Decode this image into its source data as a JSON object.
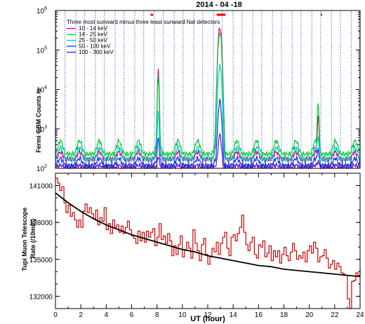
{
  "chart_data": [
    {
      "type": "line",
      "title": "2014 - 04 -18",
      "ylabel": "Fermi GBM Counts /s",
      "yscale": "log",
      "ylim": [
        100,
        1000000
      ],
      "xlim": [
        0,
        24
      ],
      "y_ticks": [
        {
          "value": 100,
          "base": "10",
          "exp": "2"
        },
        {
          "value": 1000,
          "base": "10",
          "exp": "3"
        },
        {
          "value": 10000,
          "base": "10",
          "exp": "4"
        },
        {
          "value": 100000,
          "base": "10",
          "exp": "5"
        },
        {
          "value": 1000000,
          "base": "10",
          "exp": "6"
        }
      ],
      "legend_title": "Three most sunward minus three least sunward NaI detectors",
      "legend_position": "top-left",
      "series": [
        {
          "name": "10 - 14 keV",
          "color": "#dd0077",
          "peaks": [
            {
              "x": 8.1,
              "y": 30000
            },
            {
              "x": 12.95,
              "y": 380000
            },
            {
              "x": 20.7,
              "y": 2000
            }
          ]
        },
        {
          "name": "14 - 25 keV",
          "color": "#00cc33",
          "peaks": [
            {
              "x": 8.1,
              "y": 20000
            },
            {
              "x": 12.95,
              "y": 280000
            },
            {
              "x": 20.7,
              "y": 4500
            }
          ]
        },
        {
          "name": "25 - 50 keV",
          "color": "#00cccc",
          "peaks": [
            {
              "x": 8.1,
              "y": 2500
            },
            {
              "x": 12.95,
              "y": 40000
            },
            {
              "x": 20.7,
              "y": 600
            }
          ]
        },
        {
          "name": "50 - 100 keV",
          "color": "#0033ff",
          "peaks": [
            {
              "x": 8.1,
              "y": 600
            },
            {
              "x": 12.95,
              "y": 5000
            },
            {
              "x": 20.7,
              "y": 300
            }
          ]
        },
        {
          "name": "100 - 300 keV",
          "color": "#6a0dad",
          "peaks": [
            {
              "x": 8.1,
              "y": 200
            },
            {
              "x": 12.95,
              "y": 700
            },
            {
              "x": 20.7,
              "y": 150
            }
          ]
        }
      ],
      "orbit_bumps_x": [
        0.4,
        1.9,
        3.45,
        5.0,
        6.55,
        8.1,
        9.65,
        11.2,
        12.75,
        14.3,
        15.85,
        17.4,
        18.95,
        20.5,
        22.05,
        23.6
      ],
      "saa_gaps_x": [
        0.05,
        0.75,
        1.6,
        2.3,
        3.15,
        3.85,
        4.7,
        5.4,
        6.25,
        6.95,
        7.8,
        8.5,
        9.35,
        10.05,
        10.9,
        11.6,
        12.45,
        13.15,
        14.0,
        14.7,
        15.55,
        16.25,
        17.1,
        17.8,
        18.65,
        19.35,
        20.2,
        20.9,
        21.75,
        22.45,
        23.3,
        23.95
      ],
      "red_markers_x": [
        [
          7.5,
          7.7
        ],
        [
          12.7,
          13.4
        ],
        [
          20.9,
          21.0
        ]
      ]
    },
    {
      "type": "line",
      "ylabel": "Tupi Muon Telescope Rate (/10min)",
      "xlabel": "UT (hour)",
      "xlim": [
        0,
        24
      ],
      "ylim": [
        131000,
        142000
      ],
      "x_ticks": [
        0,
        2,
        4,
        6,
        8,
        10,
        12,
        14,
        16,
        18,
        20,
        22,
        24
      ],
      "y_ticks": [
        132000,
        135000,
        138000,
        141000
      ],
      "series": [
        {
          "name": "",
          "color": "#cc0000",
          "step": true,
          "x": [
            0.0,
            0.17,
            0.33,
            0.5,
            0.67,
            0.83,
            1.0,
            1.17,
            1.33,
            1.5,
            1.67,
            1.83,
            2.0,
            2.17,
            2.33,
            2.5,
            2.67,
            2.83,
            3.0,
            3.17,
            3.33,
            3.5,
            3.67,
            3.83,
            4.0,
            4.17,
            4.33,
            4.5,
            4.67,
            4.83,
            5.0,
            5.17,
            5.33,
            5.5,
            5.67,
            5.83,
            6.0,
            6.17,
            6.33,
            6.5,
            6.67,
            6.83,
            7.0,
            7.17,
            7.33,
            7.5,
            7.67,
            7.83,
            8.0,
            8.17,
            8.33,
            8.5,
            8.67,
            8.83,
            9.0,
            9.17,
            9.33,
            9.5,
            9.67,
            9.83,
            10.0,
            10.17,
            10.33,
            10.5,
            10.67,
            10.83,
            11.0,
            11.17,
            11.33,
            11.5,
            11.67,
            11.83,
            12.0,
            12.17,
            12.33,
            12.5,
            12.67,
            12.83,
            13.0,
            13.17,
            13.33,
            13.5,
            13.67,
            13.83,
            14.0,
            14.17,
            14.33,
            14.5,
            14.67,
            14.83,
            15.0,
            15.17,
            15.33,
            15.5,
            15.67,
            15.83,
            16.0,
            16.17,
            16.33,
            16.5,
            16.67,
            16.83,
            17.0,
            17.17,
            17.33,
            17.5,
            17.67,
            17.83,
            18.0,
            18.17,
            18.33,
            18.5,
            18.67,
            18.83,
            19.0,
            19.17,
            19.33,
            19.5,
            19.67,
            19.83,
            20.0,
            20.17,
            20.33,
            20.5,
            20.67,
            20.83,
            21.0,
            21.17,
            21.33,
            21.5,
            21.67,
            21.83,
            22.0,
            22.17,
            22.33,
            22.5,
            22.67,
            22.83,
            23.0,
            23.17,
            23.33,
            23.5,
            23.67,
            23.83,
            24.0
          ],
          "y": [
            141600,
            141200,
            140600,
            140900,
            139600,
            138800,
            139400,
            138500,
            138800,
            138200,
            137600,
            138200,
            137600,
            138900,
            139500,
            138800,
            139200,
            138700,
            138300,
            139000,
            137800,
            138400,
            138100,
            139200,
            137400,
            137900,
            137100,
            138200,
            137600,
            137800,
            137200,
            137700,
            137100,
            137600,
            138100,
            137400,
            136900,
            136700,
            136300,
            137300,
            136500,
            137200,
            136400,
            137300,
            136800,
            137200,
            137500,
            136100,
            136800,
            137900,
            136600,
            136900,
            136300,
            137100,
            136500,
            135300,
            136100,
            135400,
            136200,
            136900,
            135200,
            135800,
            136400,
            135900,
            135100,
            137400,
            136300,
            135700,
            134900,
            136200,
            136700,
            135400,
            134600,
            135200,
            135900,
            135600,
            136400,
            135400,
            136300,
            136800,
            137200,
            135900,
            135300,
            136800,
            137000,
            136500,
            137100,
            137600,
            138600,
            137200,
            136200,
            135700,
            136400,
            136800,
            135400,
            135100,
            136200,
            136000,
            136500,
            135200,
            135500,
            136100,
            134900,
            135700,
            135200,
            135700,
            134700,
            135400,
            136000,
            135300,
            134900,
            135600,
            136300,
            135700,
            135000,
            135300,
            135100,
            135600,
            134800,
            135700,
            136100,
            135500,
            136400,
            135900,
            134800,
            135200,
            135300,
            135800,
            135100,
            134300,
            134600,
            134900,
            134200,
            134700,
            134400,
            133900,
            133800,
            133700,
            131800,
            131000,
            133200,
            133300,
            133900,
            133700,
            134300
          ]
        },
        {
          "name": "",
          "color": "#000000",
          "fit": true,
          "x": [
            0,
            1,
            2,
            3,
            4,
            5,
            6,
            7,
            8,
            9,
            10,
            11,
            12,
            13,
            14,
            15,
            16,
            17,
            18,
            19,
            20,
            21,
            22,
            23,
            24
          ],
          "y": [
            140400,
            139600,
            138900,
            138300,
            137800,
            137400,
            137000,
            136700,
            136400,
            136100,
            135800,
            135600,
            135300,
            135100,
            134900,
            134700,
            134500,
            134400,
            134200,
            134100,
            134000,
            133900,
            133800,
            133700,
            133600
          ]
        }
      ]
    }
  ]
}
